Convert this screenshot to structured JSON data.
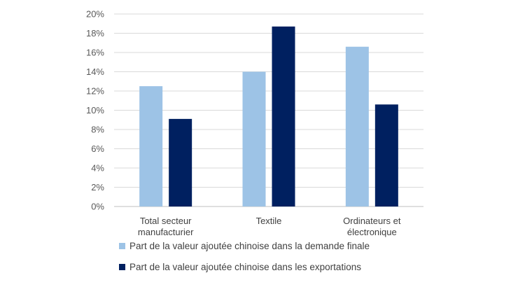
{
  "chart_data": {
    "type": "bar",
    "categories": [
      [
        "Total secteur",
        "manufacturier"
      ],
      [
        "Textile"
      ],
      [
        "Ordinateurs et",
        "électronique"
      ]
    ],
    "series": [
      {
        "name": "Part de la valeur ajoutée chinoise dans la demande finale",
        "values": [
          12.5,
          14.0,
          16.6
        ],
        "color": "#9dc3e6"
      },
      {
        "name": "Part de la valeur ajoutée chinoise dans les exportations",
        "values": [
          9.1,
          18.7,
          10.6
        ],
        "color": "#002060"
      }
    ],
    "yticks": [
      "0%",
      "2%",
      "4%",
      "6%",
      "8%",
      "10%",
      "12%",
      "14%",
      "16%",
      "18%",
      "20%"
    ],
    "ylim": [
      0,
      20
    ],
    "grid": true,
    "legend_position": "bottom"
  }
}
